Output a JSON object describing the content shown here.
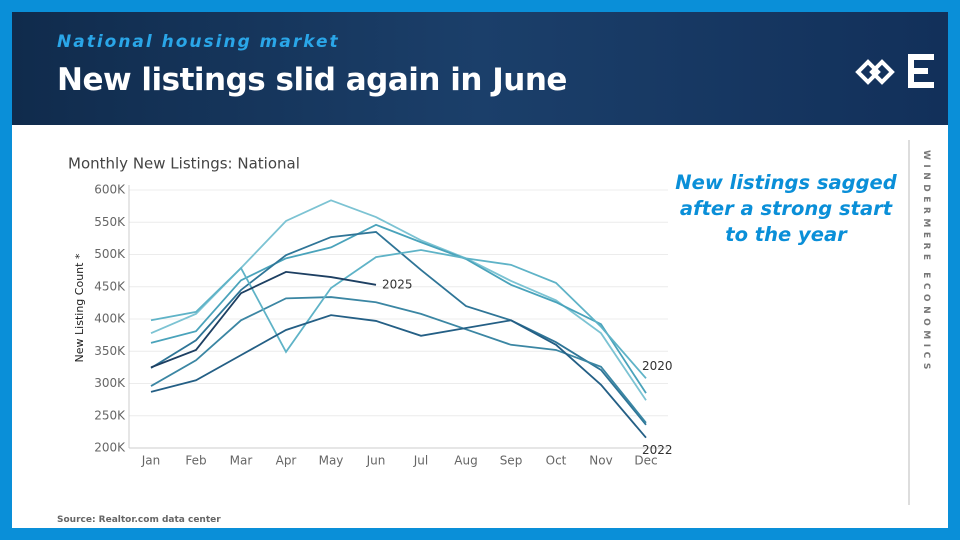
{
  "header": {
    "kicker": "National housing market",
    "title": "New listings slid again in June"
  },
  "annotation": "New listings sagged after a strong start to the year",
  "sidebar": "WINDERMERE ECONOMICS",
  "source": "Source: Realtor.com data center",
  "chart_data": {
    "type": "line",
    "title": "Monthly New Listings: National",
    "y_label": "New Listing Count *",
    "categories": [
      "Jan",
      "Feb",
      "Mar",
      "Apr",
      "May",
      "Jun",
      "Jul",
      "Aug",
      "Sep",
      "Oct",
      "Nov",
      "Dec"
    ],
    "ylim": [
      200000,
      600000
    ],
    "yticks": [
      {
        "value": 200000,
        "label": "200K"
      },
      {
        "value": 250000,
        "label": "250K"
      },
      {
        "value": 300000,
        "label": "300K"
      },
      {
        "value": 350000,
        "label": "350K"
      },
      {
        "value": 400000,
        "label": "400K"
      },
      {
        "value": 450000,
        "label": "450K"
      },
      {
        "value": 500000,
        "label": "500K"
      },
      {
        "value": 550000,
        "label": "550K"
      },
      {
        "value": 600000,
        "label": "600K"
      }
    ],
    "grid": true,
    "series": [
      {
        "color": "#7cc3d3",
        "values": [
          378000,
          408000,
          479000,
          552000,
          584000,
          558000,
          522000,
          494000,
          459000,
          429000,
          378000,
          274000
        ]
      },
      {
        "color": "#4aa3bb",
        "values": [
          363000,
          381000,
          460000,
          494000,
          511000,
          546000,
          519000,
          493000,
          453000,
          426000,
          392000,
          285000
        ]
      },
      {
        "color": "#2f7597",
        "values": [
          324000,
          367000,
          445000,
          499000,
          527000,
          535000,
          476000,
          420000,
          398000,
          364000,
          321000,
          236000
        ]
      },
      {
        "color": "#3b86a3",
        "values": [
          296000,
          336000,
          398000,
          432000,
          434000,
          426000,
          408000,
          384000,
          360000,
          352000,
          326000,
          239000
        ]
      },
      {
        "name": "2020",
        "color": "#5fb3c7",
        "values": [
          398000,
          411000,
          479000,
          349000,
          448000,
          496000,
          507000,
          494000,
          484000,
          456000,
          388000,
          308000
        ]
      },
      {
        "name": "2022",
        "color": "#245f85",
        "values": [
          287000,
          305000,
          344000,
          383000,
          406000,
          397000,
          374000,
          386000,
          398000,
          360000,
          298000,
          216000
        ]
      },
      {
        "name": "2025",
        "color": "#1d3f62",
        "values": [
          325000,
          352000,
          440000,
          473000,
          465000,
          453000,
          null,
          null,
          null,
          null,
          null,
          null
        ]
      }
    ]
  }
}
